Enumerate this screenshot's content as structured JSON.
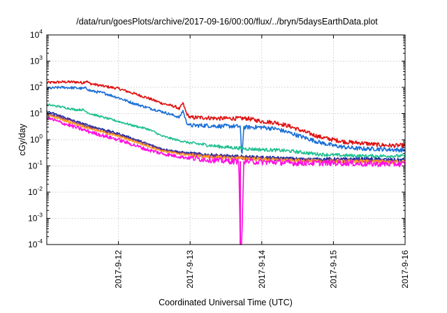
{
  "chart_data": {
    "type": "line",
    "title": "/data/run/goesPlots/archive/2017-09-16/00:00/flux/../bryn/5daysEarthData.plot",
    "xlabel": "Coordinated Universal Time (UTC)",
    "ylabel": "cGy/day",
    "x_ticks": [
      "2017-9-12",
      "2017-9-13",
      "2017-9-14",
      "2017-9-15",
      "2017-9-16"
    ],
    "xlim": [
      "2017-09-11",
      "2017-09-16"
    ],
    "y_scale": "log",
    "ylim": [
      0.0001,
      10000
    ],
    "y_ticks": [
      {
        "base": "10",
        "exp": "-4"
      },
      {
        "base": "10",
        "exp": "-3"
      },
      {
        "base": "10",
        "exp": "-2"
      },
      {
        "base": "10",
        "exp": "-1"
      },
      {
        "base": "10",
        "exp": "0"
      },
      {
        "base": "10",
        "exp": "1"
      },
      {
        "base": "10",
        "exp": "2"
      },
      {
        "base": "10",
        "exp": "3"
      },
      {
        "base": "10",
        "exp": "4"
      }
    ],
    "grid": true,
    "series": [
      {
        "color": "#e01010",
        "noise": 0.05,
        "x": [
          0,
          0.2,
          0.4,
          0.5,
          0.55,
          0.6,
          0.8,
          1.0,
          1.2,
          1.4,
          1.6,
          1.8,
          1.85,
          1.9,
          1.95,
          2.0,
          2.2,
          2.4,
          2.6,
          2.8,
          3.0,
          3.2,
          3.4,
          3.6,
          3.8,
          4.0,
          4.2,
          4.4,
          4.6,
          4.8,
          5.0
        ],
        "y": [
          150,
          160,
          160,
          150,
          175,
          140,
          110,
          90,
          60,
          40,
          25,
          18,
          15,
          25,
          10,
          7,
          7,
          6.5,
          6.5,
          6.5,
          5,
          4.5,
          3.2,
          2,
          1.3,
          1.0,
          0.8,
          0.75,
          0.65,
          0.6,
          0.6
        ]
      },
      {
        "color": "#1a6fd6",
        "noise": 0.05,
        "x": [
          0,
          0.2,
          0.4,
          0.5,
          0.55,
          0.6,
          0.8,
          1.0,
          1.2,
          1.4,
          1.6,
          1.8,
          1.85,
          1.9,
          1.95,
          2.0,
          2.2,
          2.4,
          2.6,
          2.7,
          2.72,
          2.75,
          2.8,
          3.0,
          3.2,
          3.4,
          3.6,
          3.8,
          4.0,
          4.2,
          4.4,
          4.6,
          4.8,
          5.0
        ],
        "y": [
          90,
          100,
          95,
          90,
          95,
          75,
          60,
          40,
          25,
          17,
          12,
          8,
          7,
          13,
          4.5,
          3.5,
          3.5,
          3.3,
          3.3,
          3.2,
          0.2,
          3.0,
          3.0,
          3.0,
          2.6,
          1.8,
          1.2,
          0.8,
          0.6,
          0.5,
          0.45,
          0.45,
          0.42,
          0.4
        ]
      },
      {
        "color": "#20c090",
        "noise": 0.04,
        "x": [
          0,
          0.2,
          0.4,
          0.5,
          0.6,
          0.8,
          1.0,
          1.2,
          1.4,
          1.5,
          1.6,
          1.8,
          2.0,
          2.2,
          2.4,
          2.6,
          2.8,
          3.0,
          3.2,
          3.4,
          3.6,
          3.8,
          4.0,
          4.2,
          4.4,
          4.6,
          4.8,
          5.0
        ],
        "y": [
          22,
          18,
          14,
          14,
          10,
          7,
          5,
          3.5,
          2.6,
          2.0,
          1.4,
          1.0,
          0.75,
          0.65,
          0.55,
          0.5,
          0.45,
          0.42,
          0.4,
          0.37,
          0.32,
          0.28,
          0.26,
          0.25,
          0.24,
          0.24,
          0.24,
          0.24
        ]
      },
      {
        "color": "#1a2aa0",
        "noise": 0.04,
        "x": [
          0,
          0.2,
          0.4,
          0.6,
          0.8,
          1.0,
          1.2,
          1.4,
          1.6,
          1.8,
          2.0,
          2.2,
          2.4,
          2.6,
          2.8,
          3.0,
          3.2,
          3.4,
          3.6,
          3.8,
          4.0,
          4.2,
          4.4,
          4.6,
          4.8,
          5.0
        ],
        "y": [
          12,
          8,
          5,
          3.4,
          2.4,
          1.7,
          1.1,
          0.7,
          0.45,
          0.36,
          0.3,
          0.27,
          0.25,
          0.23,
          0.22,
          0.21,
          0.2,
          0.19,
          0.18,
          0.18,
          0.18,
          0.18,
          0.18,
          0.18,
          0.17,
          0.17
        ]
      },
      {
        "color": "#7a3a80",
        "noise": 0.04,
        "x": [
          0,
          0.2,
          0.4,
          0.6,
          0.8,
          1.0,
          1.2,
          1.4,
          1.6,
          1.8,
          2.0,
          2.2,
          2.4,
          2.6,
          2.8,
          3.0,
          3.2,
          3.4,
          3.6,
          3.8,
          4.0,
          4.2,
          4.4,
          4.6,
          4.8,
          5.0
        ],
        "y": [
          10,
          7,
          4.5,
          3.0,
          2.1,
          1.5,
          1.0,
          0.65,
          0.42,
          0.33,
          0.28,
          0.25,
          0.23,
          0.21,
          0.2,
          0.19,
          0.18,
          0.17,
          0.17,
          0.16,
          0.16,
          0.16,
          0.16,
          0.16,
          0.15,
          0.15
        ]
      },
      {
        "color": "#ff9a20",
        "noise": 0.04,
        "x": [
          0,
          0.2,
          0.4,
          0.6,
          0.8,
          1.0,
          1.2,
          1.4,
          1.6,
          1.8,
          2.0,
          2.2,
          2.4,
          2.6,
          2.8,
          3.0,
          3.2,
          3.4,
          3.6,
          3.8,
          4.0,
          4.2,
          4.4,
          4.6,
          4.8,
          5.0
        ],
        "y": [
          9,
          6,
          4,
          2.7,
          1.9,
          1.35,
          0.9,
          0.58,
          0.38,
          0.3,
          0.26,
          0.23,
          0.21,
          0.2,
          0.19,
          0.18,
          0.17,
          0.16,
          0.16,
          0.15,
          0.15,
          0.15,
          0.15,
          0.15,
          0.14,
          0.14
        ]
      },
      {
        "color": "#ff10e0",
        "noise": 0.07,
        "x": [
          0,
          0.2,
          0.4,
          0.6,
          0.8,
          1.0,
          1.2,
          1.4,
          1.6,
          1.8,
          2.0,
          2.2,
          2.4,
          2.6,
          2.65,
          2.68,
          2.7,
          2.72,
          2.75,
          2.8,
          3.0,
          3.2,
          3.4,
          3.6,
          3.8,
          4.0,
          4.2,
          4.4,
          4.6,
          4.8,
          5.0
        ],
        "y": [
          7,
          4.5,
          3.0,
          2.0,
          1.4,
          1.0,
          0.65,
          0.42,
          0.3,
          0.24,
          0.2,
          0.18,
          0.16,
          0.15,
          0.15,
          0.15,
          0.0001,
          0.0001,
          0.15,
          0.15,
          0.14,
          0.14,
          0.13,
          0.13,
          0.13,
          0.13,
          0.13,
          0.12,
          0.12,
          0.12,
          0.12
        ]
      }
    ]
  }
}
